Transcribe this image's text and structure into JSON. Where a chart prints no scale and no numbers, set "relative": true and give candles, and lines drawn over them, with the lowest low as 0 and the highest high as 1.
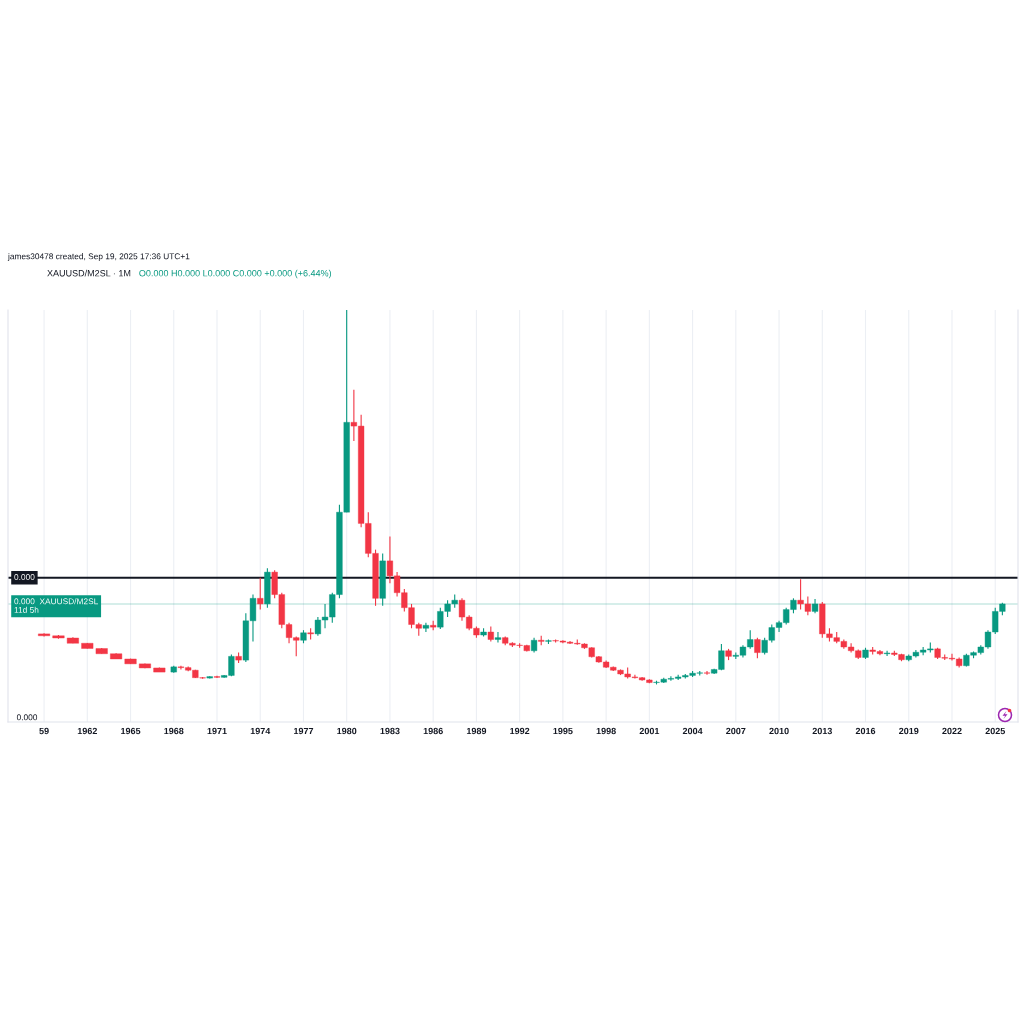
{
  "chart_data": {
    "type": "candlestick",
    "title": "XAUUSD/M2SL · 1M",
    "subtitle": "O0.000 H0.000 L0.000 C0.000 +0.000 (+6.44%)",
    "annotations": [
      "james30478 created, Sep 19, 2025 17:36 UTC+1",
      "0.000",
      "0.000"
    ],
    "relative": true,
    "x": [
      "1959",
      "1960",
      "1961",
      "1962",
      "1963",
      "1964",
      "1965",
      "1966",
      "1967",
      "1968-01",
      "1968-07",
      "1969-01",
      "1969-07",
      "1970-01",
      "1970-07",
      "1971-01",
      "1971-07",
      "1972-01",
      "1972-07",
      "1973-01",
      "1973-07",
      "1974-01",
      "1974-07",
      "1975-01",
      "1975-07",
      "1976-01",
      "1976-07",
      "1977-01",
      "1977-07",
      "1978-01",
      "1978-07",
      "1979-01",
      "1979-07",
      "1980-01",
      "1980-07",
      "1981-01",
      "1981-07",
      "1982-01",
      "1982-07",
      "1983-01",
      "1983-07",
      "1984-01",
      "1984-07",
      "1985-01",
      "1985-07",
      "1986-01",
      "1986-07",
      "1987-01",
      "1987-07",
      "1988-01",
      "1988-07",
      "1989-01",
      "1989-07",
      "1990-01",
      "1990-07",
      "1991-01",
      "1991-07",
      "1992-01",
      "1992-07",
      "1993-01",
      "1993-07",
      "1994-01",
      "1994-07",
      "1995-01",
      "1995-07",
      "1996-01",
      "1996-07",
      "1997-01",
      "1997-07",
      "1998-01",
      "1998-07",
      "1999-01",
      "1999-07",
      "2000-01",
      "2000-07",
      "2001-01",
      "2001-07",
      "2002-01",
      "2002-07",
      "2003-01",
      "2003-07",
      "2004-01",
      "2004-07",
      "2005-01",
      "2005-07",
      "2006-01",
      "2006-07",
      "2007-01",
      "2007-07",
      "2008-01",
      "2008-07",
      "2009-01",
      "2009-07",
      "2010-01",
      "2010-07",
      "2011-01",
      "2011-07",
      "2012-01",
      "2012-07",
      "2013-01",
      "2013-07",
      "2014-01",
      "2014-07",
      "2015-01",
      "2015-07",
      "2016-01",
      "2016-07",
      "2017-01",
      "2017-07",
      "2018-01",
      "2018-07",
      "2019-01",
      "2019-07",
      "2020-01",
      "2020-07",
      "2021-01",
      "2021-07",
      "2022-01",
      "2022-07",
      "2023-01",
      "2023-07",
      "2024-01",
      "2024-07",
      "2025-01",
      "2025-07"
    ],
    "ohlc": [
      [
        0.135,
        0.137,
        0.128,
        0.13
      ],
      [
        0.13,
        0.132,
        0.122,
        0.124
      ],
      [
        0.124,
        0.126,
        0.11,
        0.11
      ],
      [
        0.11,
        0.111,
        0.096,
        0.096
      ],
      [
        0.096,
        0.097,
        0.082,
        0.082
      ],
      [
        0.082,
        0.083,
        0.068,
        0.068
      ],
      [
        0.068,
        0.069,
        0.055,
        0.055
      ],
      [
        0.055,
        0.056,
        0.043,
        0.044
      ],
      [
        0.044,
        0.045,
        0.033,
        0.033
      ],
      [
        0.033,
        0.05,
        0.031,
        0.047
      ],
      [
        0.047,
        0.05,
        0.04,
        0.045
      ],
      [
        0.045,
        0.048,
        0.035,
        0.038
      ],
      [
        0.038,
        0.039,
        0.017,
        0.018
      ],
      [
        0.018,
        0.02,
        0.015,
        0.017
      ],
      [
        0.017,
        0.022,
        0.016,
        0.021
      ],
      [
        0.021,
        0.023,
        0.017,
        0.019
      ],
      [
        0.019,
        0.025,
        0.018,
        0.024
      ],
      [
        0.024,
        0.08,
        0.022,
        0.075
      ],
      [
        0.075,
        0.085,
        0.057,
        0.065
      ],
      [
        0.065,
        0.19,
        0.06,
        0.17
      ],
      [
        0.17,
        0.24,
        0.115,
        0.23
      ],
      [
        0.23,
        0.285,
        0.2,
        0.215
      ],
      [
        0.215,
        0.31,
        0.205,
        0.3
      ],
      [
        0.3,
        0.305,
        0.23,
        0.24
      ],
      [
        0.24,
        0.245,
        0.15,
        0.16
      ],
      [
        0.16,
        0.165,
        0.11,
        0.125
      ],
      [
        0.125,
        0.128,
        0.075,
        0.118
      ],
      [
        0.118,
        0.145,
        0.11,
        0.138
      ],
      [
        0.138,
        0.15,
        0.12,
        0.135
      ],
      [
        0.135,
        0.18,
        0.13,
        0.172
      ],
      [
        0.172,
        0.215,
        0.15,
        0.18
      ],
      [
        0.18,
        0.245,
        0.165,
        0.24
      ],
      [
        0.24,
        0.48,
        0.23,
        0.46
      ],
      [
        0.46,
        1.0,
        0.46,
        0.7
      ],
      [
        0.7,
        0.787,
        0.65,
        0.69
      ],
      [
        0.69,
        0.72,
        0.42,
        0.43
      ],
      [
        0.43,
        0.46,
        0.34,
        0.35
      ],
      [
        0.35,
        0.36,
        0.21,
        0.23
      ],
      [
        0.23,
        0.35,
        0.21,
        0.33
      ],
      [
        0.33,
        0.395,
        0.27,
        0.29
      ],
      [
        0.29,
        0.3,
        0.235,
        0.245
      ],
      [
        0.245,
        0.255,
        0.195,
        0.205
      ],
      [
        0.205,
        0.215,
        0.15,
        0.16
      ],
      [
        0.16,
        0.165,
        0.13,
        0.15
      ],
      [
        0.15,
        0.165,
        0.14,
        0.158
      ],
      [
        0.158,
        0.17,
        0.145,
        0.153
      ],
      [
        0.153,
        0.205,
        0.148,
        0.195
      ],
      [
        0.195,
        0.225,
        0.18,
        0.215
      ],
      [
        0.215,
        0.24,
        0.205,
        0.225
      ],
      [
        0.225,
        0.23,
        0.17,
        0.18
      ],
      [
        0.18,
        0.185,
        0.145,
        0.15
      ],
      [
        0.15,
        0.155,
        0.125,
        0.132
      ],
      [
        0.132,
        0.15,
        0.128,
        0.14
      ],
      [
        0.14,
        0.155,
        0.115,
        0.12
      ],
      [
        0.12,
        0.14,
        0.112,
        0.125
      ],
      [
        0.125,
        0.128,
        0.105,
        0.11
      ],
      [
        0.11,
        0.113,
        0.1,
        0.105
      ],
      [
        0.105,
        0.11,
        0.098,
        0.104
      ],
      [
        0.104,
        0.106,
        0.088,
        0.09
      ],
      [
        0.09,
        0.125,
        0.085,
        0.118
      ],
      [
        0.118,
        0.13,
        0.105,
        0.115
      ],
      [
        0.115,
        0.12,
        0.108,
        0.117
      ],
      [
        0.117,
        0.12,
        0.112,
        0.116
      ],
      [
        0.116,
        0.118,
        0.11,
        0.113
      ],
      [
        0.113,
        0.116,
        0.108,
        0.11
      ],
      [
        0.11,
        0.12,
        0.106,
        0.108
      ],
      [
        0.108,
        0.11,
        0.095,
        0.098
      ],
      [
        0.098,
        0.099,
        0.072,
        0.074
      ],
      [
        0.074,
        0.076,
        0.058,
        0.06
      ],
      [
        0.06,
        0.064,
        0.044,
        0.046
      ],
      [
        0.046,
        0.048,
        0.036,
        0.038
      ],
      [
        0.038,
        0.04,
        0.025,
        0.028
      ],
      [
        0.028,
        0.045,
        0.016,
        0.02
      ],
      [
        0.02,
        0.026,
        0.016,
        0.018
      ],
      [
        0.018,
        0.02,
        0.01,
        0.012
      ],
      [
        0.012,
        0.014,
        0.003,
        0.005
      ],
      [
        0.005,
        0.01,
        0.0,
        0.006
      ],
      [
        0.006,
        0.018,
        0.004,
        0.014
      ],
      [
        0.014,
        0.022,
        0.01,
        0.016
      ],
      [
        0.016,
        0.026,
        0.012,
        0.02
      ],
      [
        0.02,
        0.028,
        0.016,
        0.024
      ],
      [
        0.024,
        0.036,
        0.02,
        0.03
      ],
      [
        0.03,
        0.036,
        0.024,
        0.031
      ],
      [
        0.031,
        0.036,
        0.026,
        0.03
      ],
      [
        0.03,
        0.042,
        0.028,
        0.04
      ],
      [
        0.04,
        0.108,
        0.038,
        0.09
      ],
      [
        0.09,
        0.095,
        0.065,
        0.075
      ],
      [
        0.075,
        0.085,
        0.068,
        0.078
      ],
      [
        0.078,
        0.105,
        0.072,
        0.1
      ],
      [
        0.1,
        0.145,
        0.095,
        0.12
      ],
      [
        0.12,
        0.125,
        0.07,
        0.085
      ],
      [
        0.085,
        0.125,
        0.08,
        0.118
      ],
      [
        0.118,
        0.16,
        0.112,
        0.152
      ],
      [
        0.152,
        0.17,
        0.14,
        0.165
      ],
      [
        0.165,
        0.205,
        0.16,
        0.2
      ],
      [
        0.2,
        0.23,
        0.19,
        0.225
      ],
      [
        0.225,
        0.281,
        0.2,
        0.215
      ],
      [
        0.215,
        0.235,
        0.185,
        0.195
      ],
      [
        0.195,
        0.228,
        0.19,
        0.215
      ],
      [
        0.215,
        0.22,
        0.125,
        0.135
      ],
      [
        0.135,
        0.15,
        0.115,
        0.125
      ],
      [
        0.125,
        0.14,
        0.11,
        0.115
      ],
      [
        0.115,
        0.12,
        0.095,
        0.1
      ],
      [
        0.1,
        0.11,
        0.085,
        0.09
      ],
      [
        0.09,
        0.093,
        0.068,
        0.072
      ],
      [
        0.072,
        0.098,
        0.068,
        0.092
      ],
      [
        0.092,
        0.1,
        0.08,
        0.088
      ],
      [
        0.088,
        0.092,
        0.078,
        0.082
      ],
      [
        0.082,
        0.09,
        0.076,
        0.084
      ],
      [
        0.084,
        0.09,
        0.076,
        0.08
      ],
      [
        0.08,
        0.082,
        0.062,
        0.066
      ],
      [
        0.066,
        0.08,
        0.062,
        0.076
      ],
      [
        0.076,
        0.092,
        0.072,
        0.086
      ],
      [
        0.086,
        0.1,
        0.078,
        0.092
      ],
      [
        0.092,
        0.112,
        0.085,
        0.095
      ],
      [
        0.095,
        0.098,
        0.068,
        0.072
      ],
      [
        0.072,
        0.08,
        0.065,
        0.07
      ],
      [
        0.07,
        0.082,
        0.064,
        0.068
      ],
      [
        0.068,
        0.072,
        0.045,
        0.05
      ],
      [
        0.05,
        0.082,
        0.048,
        0.078
      ],
      [
        0.078,
        0.088,
        0.07,
        0.085
      ],
      [
        0.085,
        0.105,
        0.08,
        0.1
      ],
      [
        0.1,
        0.145,
        0.095,
        0.14
      ],
      [
        0.14,
        0.205,
        0.135,
        0.195
      ],
      [
        0.195,
        0.218,
        0.185,
        0.215
      ]
    ],
    "colors": [
      "#f23645",
      "#f23645",
      "#f23645",
      "#f23645",
      "#f23645",
      "#f23645",
      "#f23645",
      "#f23645",
      "#f23645",
      "#089981",
      "#f23645",
      "#f23645",
      "#f23645",
      "#f23645",
      "#089981",
      "#f23645",
      "#089981",
      "#089981",
      "#f23645",
      "#089981",
      "#089981",
      "#f23645",
      "#089981",
      "#f23645",
      "#f23645",
      "#f23645",
      "#f23645",
      "#089981",
      "#f23645",
      "#089981",
      "#089981",
      "#089981",
      "#089981",
      "#089981",
      "#f23645",
      "#f23645",
      "#f23645",
      "#f23645",
      "#089981",
      "#f23645",
      "#f23645",
      "#f23645",
      "#f23645",
      "#f23645",
      "#089981",
      "#f23645",
      "#089981",
      "#089981",
      "#089981",
      "#f23645",
      "#f23645",
      "#f23645",
      "#089981",
      "#f23645",
      "#089981",
      "#f23645",
      "#f23645",
      "#f23645",
      "#f23645",
      "#089981",
      "#f23645",
      "#089981",
      "#f23645",
      "#f23645",
      "#f23645",
      "#f23645",
      "#f23645",
      "#f23645",
      "#f23645",
      "#f23645",
      "#f23645",
      "#f23645",
      "#f23645",
      "#f23645",
      "#f23645",
      "#f23645",
      "#089981",
      "#089981",
      "#089981",
      "#089981",
      "#089981",
      "#089981",
      "#089981",
      "#f23645",
      "#089981",
      "#089981",
      "#f23645",
      "#089981",
      "#089981",
      "#089981",
      "#f23645",
      "#089981",
      "#089981",
      "#089981",
      "#089981",
      "#089981",
      "#f23645",
      "#f23645",
      "#089981",
      "#f23645",
      "#f23645",
      "#f23645",
      "#f23645",
      "#f23645",
      "#f23645",
      "#089981",
      "#f23645",
      "#f23645",
      "#089981",
      "#f23645",
      "#f23645",
      "#089981",
      "#089981",
      "#089981",
      "#089981",
      "#f23645",
      "#f23645",
      "#f23645",
      "#f23645",
      "#089981",
      "#089981",
      "#089981",
      "#089981",
      "#089981",
      "#089981"
    ],
    "xlim": [
      "1956-07",
      "2026-08"
    ],
    "xticks": [
      {
        "value": "1959",
        "label": "59"
      },
      "1962",
      "1965",
      "1968",
      "1971",
      "1974",
      "1977",
      "1980",
      "1983",
      "1986",
      "1989",
      "1992",
      "1995",
      "1998",
      "2001",
      "2004",
      "2007",
      "2010",
      "2013",
      "2016",
      "2019",
      "2022",
      "2025"
    ],
    "grid": "x",
    "ref_lines": [
      {
        "axis": "y",
        "value": 0.285,
        "color": "#131722"
      },
      {
        "axis": "y",
        "value": 0.215,
        "label": "0.000  XAUUSD/M2SL\n11d 5h",
        "color": "#089981"
      }
    ]
  }
}
